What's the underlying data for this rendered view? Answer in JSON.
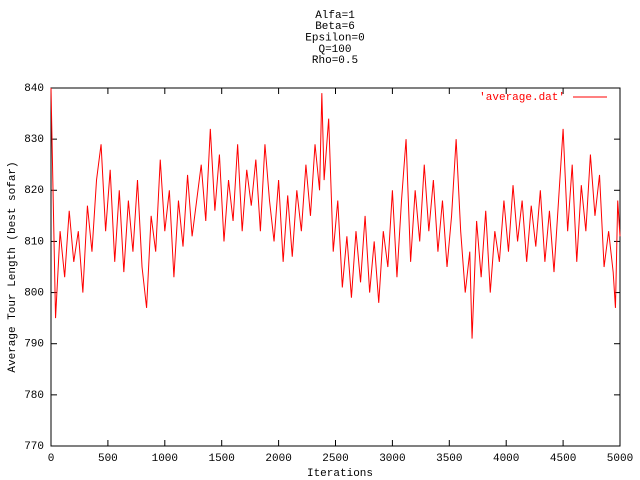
{
  "chart_data": {
    "type": "line",
    "title_lines": [
      "Alfa=1",
      "Beta=6",
      "Epsilon=0",
      "Q=100",
      "Rho=0.5"
    ],
    "x_label": "Iterations",
    "y_label": "Average Tour Length (best sofar)",
    "legend": "top-right",
    "x": [
      0,
      40,
      80,
      120,
      160,
      200,
      240,
      280,
      320,
      360,
      400,
      440,
      480,
      520,
      560,
      600,
      640,
      680,
      720,
      760,
      800,
      840,
      880,
      920,
      960,
      1000,
      1040,
      1080,
      1120,
      1160,
      1200,
      1240,
      1280,
      1320,
      1360,
      1400,
      1440,
      1480,
      1520,
      1560,
      1600,
      1640,
      1680,
      1720,
      1760,
      1800,
      1840,
      1880,
      1920,
      1960,
      2000,
      2040,
      2080,
      2120,
      2160,
      2200,
      2240,
      2280,
      2320,
      2360,
      2380,
      2400,
      2440,
      2480,
      2520,
      2560,
      2600,
      2640,
      2680,
      2720,
      2760,
      2800,
      2840,
      2880,
      2920,
      2960,
      3000,
      3040,
      3080,
      3120,
      3160,
      3200,
      3240,
      3280,
      3320,
      3360,
      3400,
      3440,
      3480,
      3520,
      3560,
      3600,
      3640,
      3680,
      3700,
      3740,
      3780,
      3820,
      3860,
      3900,
      3940,
      3980,
      4020,
      4060,
      4100,
      4140,
      4180,
      4220,
      4260,
      4300,
      4340,
      4380,
      4420,
      4460,
      4500,
      4540,
      4580,
      4620,
      4660,
      4700,
      4740,
      4780,
      4820,
      4860,
      4900,
      4940,
      4960,
      4980,
      5000
    ],
    "series": [
      {
        "name": "'average.dat'",
        "color": "#ff0000",
        "values": [
          840,
          795,
          812,
          803,
          816,
          806,
          812,
          800,
          817,
          808,
          822,
          829,
          812,
          824,
          806,
          820,
          804,
          818,
          808,
          822,
          805,
          797,
          815,
          808,
          826,
          812,
          820,
          803,
          818,
          809,
          823,
          811,
          818,
          825,
          814,
          832,
          816,
          827,
          810,
          822,
          814,
          829,
          812,
          824,
          817,
          826,
          812,
          829,
          818,
          810,
          822,
          806,
          819,
          807,
          820,
          812,
          825,
          815,
          829,
          820,
          839,
          822,
          834,
          808,
          818,
          801,
          811,
          799,
          812,
          802,
          815,
          800,
          810,
          798,
          812,
          805,
          820,
          803,
          818,
          830,
          806,
          820,
          810,
          825,
          812,
          822,
          808,
          818,
          805,
          815,
          830,
          812,
          800,
          808,
          791,
          814,
          803,
          816,
          800,
          812,
          806,
          818,
          808,
          821,
          810,
          818,
          806,
          817,
          809,
          820,
          806,
          816,
          804,
          818,
          832,
          812,
          825,
          806,
          821,
          812,
          827,
          815,
          823,
          805,
          812,
          804,
          797,
          818,
          811
        ]
      }
    ],
    "xlim": [
      0,
      5000
    ],
    "xticks": [
      0,
      500,
      1000,
      1500,
      2000,
      2500,
      3000,
      3500,
      4000,
      4500,
      5000
    ],
    "ylim": [
      770,
      840
    ],
    "yticks": [
      770,
      780,
      790,
      800,
      810,
      820,
      830,
      840
    ]
  }
}
